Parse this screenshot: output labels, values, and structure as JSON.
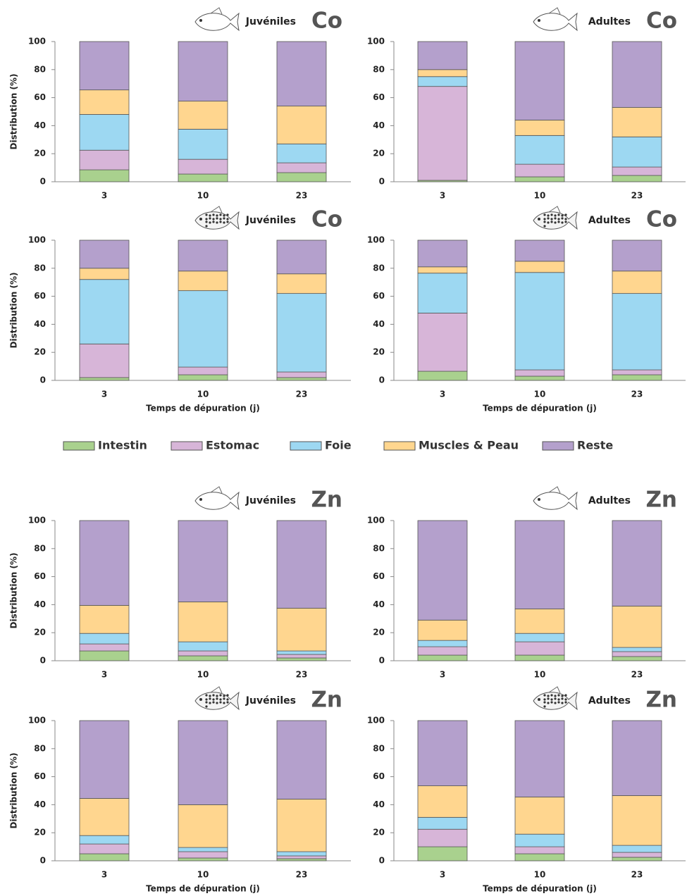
{
  "legend": {
    "items": [
      {
        "name": "Intestin",
        "color": "#a9d18e"
      },
      {
        "name": "Estomac",
        "color": "#d7b5d8"
      },
      {
        "name": "Foie",
        "color": "#9dd8f2"
      },
      {
        "name": "Muscles & Peau",
        "color": "#ffd68f"
      },
      {
        "name": "Reste",
        "color": "#b4a0cc"
      }
    ]
  },
  "chart_data": [
    {
      "type": "bar",
      "stacked": true,
      "title": "Juvéniles",
      "element": "Co",
      "ylabel": "Distribution (%)",
      "categories": [
        "3",
        "10",
        "23"
      ],
      "ylim": [
        0,
        100
      ],
      "yticks": [
        0,
        20,
        40,
        60,
        80,
        100
      ],
      "series": [
        {
          "values": [
            8.5,
            5.5,
            6.5
          ]
        },
        {
          "values": [
            14,
            10.5,
            7
          ]
        },
        {
          "values": [
            25.5,
            21.5,
            13.5
          ]
        },
        {
          "values": [
            17.5,
            20,
            27
          ]
        },
        {
          "values": [
            34.5,
            42.5,
            46
          ]
        }
      ]
    },
    {
      "type": "bar",
      "stacked": true,
      "title": "Adultes",
      "element": "Co",
      "categories": [
        "3",
        "10",
        "23"
      ],
      "ylim": [
        0,
        100
      ],
      "yticks": [
        0,
        20,
        40,
        60,
        80,
        100
      ],
      "series": [
        {
          "values": [
            1,
            3.5,
            4.5
          ]
        },
        {
          "values": [
            67,
            9,
            6
          ]
        },
        {
          "values": [
            7,
            20.5,
            21.5
          ]
        },
        {
          "values": [
            5,
            11,
            21
          ]
        },
        {
          "values": [
            20,
            56,
            47
          ]
        }
      ]
    },
    {
      "type": "bar",
      "stacked": true,
      "title": "Juvéniles",
      "element": "Co",
      "ylabel": "Distribution (%)",
      "xlabel": "Temps de dépuration (j)",
      "categories": [
        "3",
        "10",
        "23"
      ],
      "ylim": [
        0,
        100
      ],
      "yticks": [
        0,
        20,
        40,
        60,
        80,
        100
      ],
      "series": [
        {
          "values": [
            2,
            4,
            2
          ]
        },
        {
          "values": [
            24,
            5.5,
            4
          ]
        },
        {
          "values": [
            46,
            54.5,
            56
          ]
        },
        {
          "values": [
            8,
            14,
            14
          ]
        },
        {
          "values": [
            20,
            22,
            24
          ]
        }
      ]
    },
    {
      "type": "bar",
      "stacked": true,
      "title": "Adultes",
      "element": "Co",
      "xlabel": "Temps de dépuration (j)",
      "categories": [
        "3",
        "10",
        "23"
      ],
      "ylim": [
        0,
        100
      ],
      "yticks": [
        0,
        20,
        40,
        60,
        80,
        100
      ],
      "series": [
        {
          "values": [
            6.5,
            3,
            4
          ]
        },
        {
          "values": [
            41.5,
            4.5,
            3.5
          ]
        },
        {
          "values": [
            28.5,
            69.5,
            54.5
          ]
        },
        {
          "values": [
            4.5,
            8,
            16
          ]
        },
        {
          "values": [
            19,
            15,
            22
          ]
        }
      ]
    },
    {
      "type": "bar",
      "stacked": true,
      "title": "Juvéniles",
      "element": "Zn",
      "ylabel": "Distribution (%)",
      "categories": [
        "3",
        "10",
        "23"
      ],
      "ylim": [
        0,
        100
      ],
      "yticks": [
        0,
        20,
        40,
        60,
        80,
        100
      ],
      "series": [
        {
          "values": [
            7,
            3.5,
            2
          ]
        },
        {
          "values": [
            5,
            3.5,
            2.5
          ]
        },
        {
          "values": [
            7.5,
            6.5,
            2.5
          ]
        },
        {
          "values": [
            20,
            28.5,
            30.5
          ]
        },
        {
          "values": [
            60.5,
            58,
            62.5
          ]
        }
      ]
    },
    {
      "type": "bar",
      "stacked": true,
      "title": "Adultes",
      "element": "Zn",
      "categories": [
        "3",
        "10",
        "23"
      ],
      "ylim": [
        0,
        100
      ],
      "yticks": [
        0,
        20,
        40,
        60,
        80,
        100
      ],
      "series": [
        {
          "values": [
            4,
            4,
            3
          ]
        },
        {
          "values": [
            6,
            9.5,
            3.5
          ]
        },
        {
          "values": [
            4.5,
            6,
            3
          ]
        },
        {
          "values": [
            14.5,
            17.5,
            29.5
          ]
        },
        {
          "values": [
            71,
            63,
            61
          ]
        }
      ]
    },
    {
      "type": "bar",
      "stacked": true,
      "title": "Juvéniles",
      "element": "Zn",
      "ylabel": "Distribution (%)",
      "xlabel": "Temps de dépuration (j)",
      "categories": [
        "3",
        "10",
        "23"
      ],
      "ylim": [
        0,
        100
      ],
      "yticks": [
        0,
        20,
        40,
        60,
        80,
        100
      ],
      "series": [
        {
          "values": [
            5,
            2,
            1.5
          ]
        },
        {
          "values": [
            7,
            4.5,
            2
          ]
        },
        {
          "values": [
            6,
            3,
            3
          ]
        },
        {
          "values": [
            26.5,
            30.5,
            37.5
          ]
        },
        {
          "values": [
            55.5,
            60,
            56
          ]
        }
      ]
    },
    {
      "type": "bar",
      "stacked": true,
      "title": "Adultes",
      "element": "Zn",
      "xlabel": "Temps de dépuration (j)",
      "categories": [
        "3",
        "10",
        "23"
      ],
      "ylim": [
        0,
        100
      ],
      "yticks": [
        0,
        20,
        40,
        60,
        80,
        100
      ],
      "series": [
        {
          "values": [
            10,
            5,
            2.5
          ]
        },
        {
          "values": [
            12.5,
            5,
            3.5
          ]
        },
        {
          "values": [
            8.5,
            9,
            5
          ]
        },
        {
          "values": [
            22.5,
            26.5,
            35.5
          ]
        },
        {
          "values": [
            46.5,
            54.5,
            53.5
          ]
        }
      ]
    }
  ]
}
